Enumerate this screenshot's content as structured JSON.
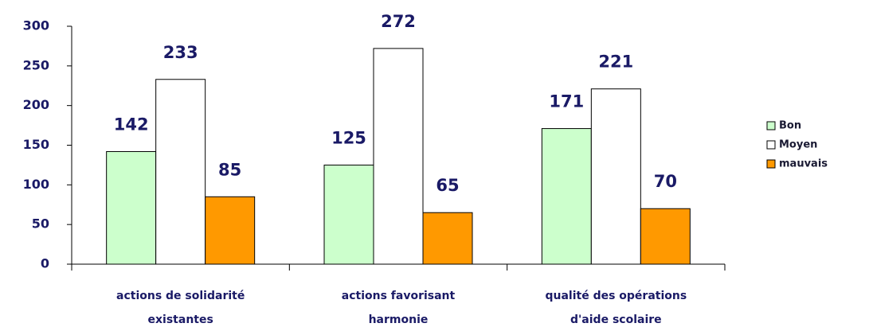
{
  "chart_data": {
    "type": "bar",
    "categories": [
      [
        "actions de solidarité",
        "existantes"
      ],
      [
        "actions favorisant",
        "harmonie"
      ],
      [
        "qualité des opérations",
        "d'aide scolaire"
      ]
    ],
    "series": [
      {
        "name": "Bon",
        "color": "#ccffcc",
        "values": [
          142,
          125,
          171
        ]
      },
      {
        "name": "Moyen",
        "color": "#ffffff",
        "values": [
          233,
          272,
          221
        ]
      },
      {
        "name": "mauvais",
        "color": "#ff9900",
        "values": [
          85,
          65,
          70
        ]
      }
    ],
    "ylim": [
      0,
      300
    ],
    "yticks": [
      0,
      50,
      100,
      150,
      200,
      250,
      300
    ],
    "grid": false,
    "legend": "right"
  }
}
